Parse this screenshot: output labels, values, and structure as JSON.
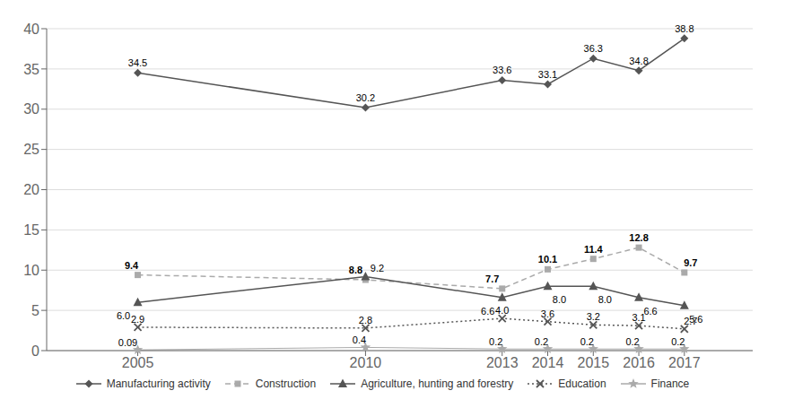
{
  "chart_data": {
    "type": "line",
    "x": [
      2005,
      2010,
      2013,
      2014,
      2015,
      2016,
      2017
    ],
    "xlim": [
      2003,
      2018.5
    ],
    "xticks": [
      2005,
      2010,
      2013,
      2014,
      2015,
      2016,
      2017
    ],
    "ylim": [
      0,
      40
    ],
    "yticks": [
      0,
      5,
      10,
      15,
      20,
      25,
      30,
      35,
      40
    ],
    "grid": true,
    "legend": "bottom",
    "data_labels": true,
    "series": [
      {
        "name": "Manufacturing activity",
        "color": "#555555",
        "marker": "diamond",
        "line_style": "solid",
        "values": [
          34.5,
          30.2,
          33.6,
          33.1,
          36.3,
          34.8,
          38.8
        ],
        "value_labels": [
          "34.5",
          "30.2",
          "33.6",
          "33.1",
          "36.3",
          "34.8",
          "38.8"
        ]
      },
      {
        "name": "Construction",
        "color": "#aaaaaa",
        "marker": "square",
        "line_style": "dashed",
        "values": [
          9.4,
          8.8,
          7.7,
          10.1,
          11.4,
          12.8,
          9.7
        ],
        "value_labels": [
          "9.4",
          "8.8",
          "7.7",
          "10.1",
          "11.4",
          "12.8",
          "9.7"
        ]
      },
      {
        "name": "Agriculture, hunting and forestry",
        "color": "#555555",
        "marker": "triangle",
        "line_style": "solid",
        "values": [
          6.0,
          9.2,
          6.6,
          8.0,
          8.0,
          6.6,
          5.6
        ],
        "value_labels": [
          "6.0",
          "9.2",
          "6.6",
          "8.0",
          "8.0",
          "6.6",
          "5.6"
        ]
      },
      {
        "name": "Education",
        "color": "#555555",
        "marker": "x",
        "line_style": "dotted",
        "values": [
          2.9,
          2.8,
          4.0,
          3.6,
          3.2,
          3.1,
          2.7
        ],
        "value_labels": [
          "2.9",
          "2.8",
          "4.0",
          "3.6",
          "3.2",
          "3.1",
          "2.7"
        ]
      },
      {
        "name": "Finance",
        "color": "#aaaaaa",
        "marker": "star",
        "line_style": "solid",
        "values": [
          0.09,
          0.4,
          0.2,
          0.2,
          0.2,
          0.2,
          0.2
        ],
        "value_labels": [
          "0.09",
          "0.4",
          "0.2",
          "0.2",
          "0.2",
          "0.2",
          "0.2"
        ]
      }
    ]
  }
}
